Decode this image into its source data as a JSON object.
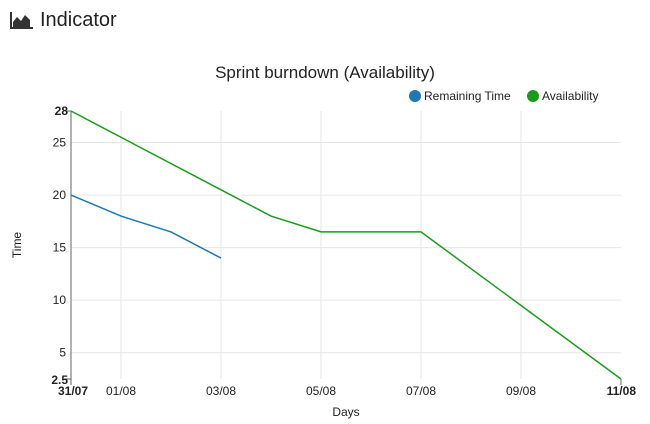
{
  "header": {
    "title": "Indicator",
    "icon": "area-chart-icon"
  },
  "chart_data": {
    "type": "line",
    "title": "Sprint burndown (Availability)",
    "xlabel": "Days",
    "ylabel": "Time",
    "x_start_label": "31/07",
    "x_end_label": "11/08",
    "x_tick_labels": [
      "31/07",
      "01/08",
      "03/08",
      "05/08",
      "07/08",
      "09/08",
      "11/08"
    ],
    "x_categories": [
      "31/07",
      "01/08",
      "02/08",
      "03/08",
      "04/08",
      "05/08",
      "06/08",
      "07/08",
      "08/08",
      "09/08",
      "10/08",
      "11/08"
    ],
    "y_ticks": [
      5,
      10,
      15,
      20,
      25
    ],
    "ylim": [
      2.5,
      28
    ],
    "grid": true,
    "legend_position": "top-right",
    "series": [
      {
        "name": "Remaining Time",
        "color": "#1f77b4",
        "x": [
          "31/07",
          "01/08",
          "02/08",
          "03/08"
        ],
        "values": [
          20,
          18,
          16.5,
          14
        ]
      },
      {
        "name": "Availability",
        "color": "#1a9c1a",
        "x": [
          "31/07",
          "03/08",
          "04/08",
          "05/08",
          "07/08",
          "11/08"
        ],
        "values": [
          28,
          20.5,
          18,
          16.5,
          16.5,
          2.5
        ]
      }
    ]
  }
}
